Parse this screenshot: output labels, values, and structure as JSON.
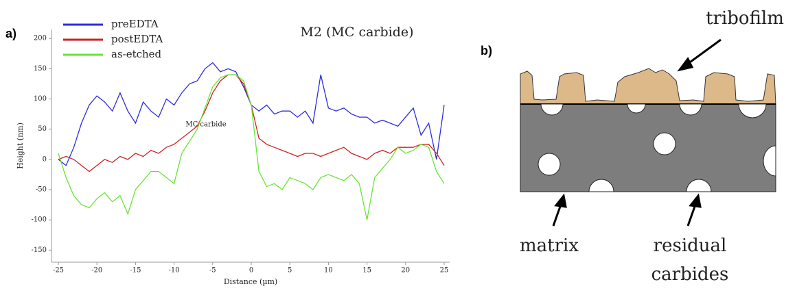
{
  "panel_labels": [
    "a)",
    "b)"
  ],
  "chart_data": {
    "type": "line",
    "title": "M2 (MC carbide)",
    "xlabel": "Distance (µm)",
    "ylabel": "Height (nm)",
    "annotations": [
      "MC carbide"
    ],
    "x": [
      -25,
      -24,
      -23,
      -22,
      -21,
      -20,
      -19,
      -18,
      -17,
      -16,
      -15,
      -14,
      -13,
      -12,
      -11,
      -10,
      -9,
      -8,
      -7,
      -6,
      -5,
      -4,
      -3,
      -2,
      -1,
      0,
      1,
      2,
      3,
      4,
      5,
      6,
      7,
      8,
      9,
      10,
      11,
      12,
      13,
      14,
      15,
      16,
      17,
      18,
      19,
      20,
      21,
      22,
      23,
      24,
      25
    ],
    "series": [
      {
        "name": "preEDTA",
        "color": "#2b2be0",
        "values": [
          0,
          -10,
          20,
          60,
          90,
          105,
          95,
          80,
          110,
          80,
          60,
          95,
          80,
          70,
          100,
          90,
          110,
          125,
          130,
          150,
          160,
          145,
          150,
          145,
          120,
          90,
          80,
          90,
          75,
          80,
          80,
          70,
          80,
          60,
          140,
          85,
          80,
          85,
          75,
          70,
          70,
          60,
          65,
          60,
          55,
          70,
          85,
          40,
          60,
          0,
          90
        ]
      },
      {
        "name": "postEDTA",
        "color": "#cc2222",
        "values": [
          0,
          5,
          0,
          -10,
          -20,
          -10,
          0,
          -5,
          5,
          0,
          10,
          5,
          15,
          10,
          20,
          25,
          35,
          45,
          55,
          80,
          110,
          130,
          140,
          140,
          125,
          90,
          35,
          25,
          20,
          15,
          10,
          5,
          10,
          10,
          5,
          10,
          15,
          20,
          10,
          5,
          0,
          10,
          15,
          10,
          20,
          20,
          20,
          25,
          25,
          10,
          -10
        ]
      },
      {
        "name": "as-etched",
        "color": "#66e633",
        "values": [
          10,
          -30,
          -60,
          -75,
          -80,
          -65,
          -55,
          -70,
          -60,
          -90,
          -50,
          -35,
          -20,
          -20,
          -30,
          -40,
          10,
          30,
          50,
          85,
          120,
          135,
          140,
          140,
          130,
          90,
          -20,
          -45,
          -40,
          -50,
          -30,
          -35,
          -40,
          -50,
          -30,
          -25,
          -30,
          -35,
          -25,
          -40,
          -100,
          -30,
          -15,
          0,
          20,
          10,
          15,
          25,
          20,
          -20,
          -40
        ]
      }
    ],
    "xlim": [
      -25,
      25
    ],
    "xticks": [
      -25,
      -20,
      -15,
      -10,
      -5,
      0,
      5,
      10,
      15,
      20,
      25
    ],
    "ylim": [
      -170,
      215
    ],
    "yticks": [
      -150,
      -100,
      -50,
      0,
      50,
      100,
      150,
      200
    ],
    "grid": false,
    "legend": "upper left"
  },
  "diagram": {
    "labels": {
      "tribofilm": "tribofilm",
      "matrix": "matrix",
      "residual_carbides": [
        "residual",
        "carbides"
      ]
    }
  }
}
